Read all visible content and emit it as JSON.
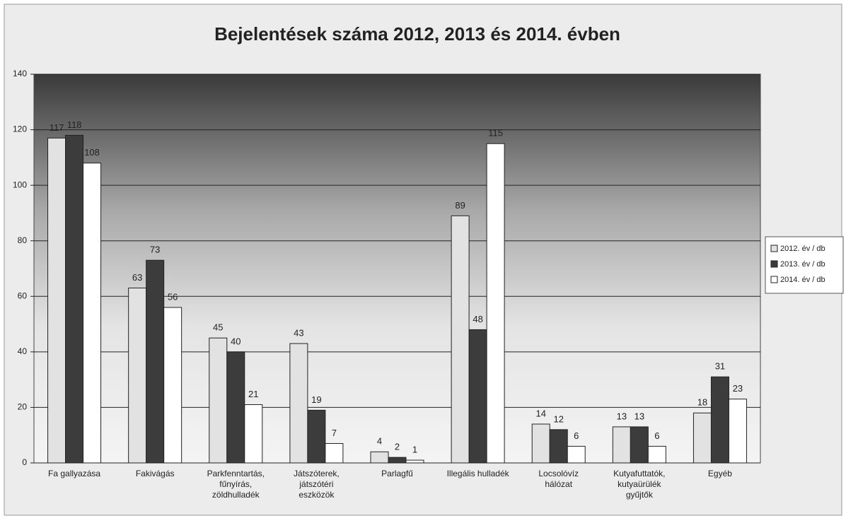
{
  "chart_data": {
    "type": "bar",
    "title": "Bejelentések száma 2012, 2013 és 2014.  évben",
    "categories": [
      [
        "Fa gallyazása"
      ],
      [
        "Fakivágás"
      ],
      [
        "Parkfenntartás,",
        "fűnyírás,",
        "zöldhulladék"
      ],
      [
        "Játszóterek,",
        "játszótéri",
        "eszközök"
      ],
      [
        "Parlagfű"
      ],
      [
        "Illegális hulladék"
      ],
      [
        "Locsolóvíz",
        "hálózat"
      ],
      [
        "Kutyafuttatók,",
        "kutyaürülék",
        "gyűjtők"
      ],
      [
        "Egyéb"
      ]
    ],
    "series": [
      {
        "name": "2012. év / db",
        "color": "#e2e2e2",
        "values": [
          117,
          63,
          45,
          43,
          4,
          89,
          14,
          13,
          18
        ]
      },
      {
        "name": "2013. év / db",
        "color": "#3c3c3c",
        "values": [
          118,
          73,
          40,
          19,
          2,
          48,
          12,
          13,
          31
        ]
      },
      {
        "name": "2014. év / db",
        "color": "#ffffff",
        "values": [
          108,
          56,
          21,
          7,
          1,
          115,
          6,
          6,
          23
        ]
      }
    ],
    "ylim": [
      0,
      140
    ],
    "yticks": [
      0,
      20,
      40,
      60,
      80,
      100,
      120,
      140
    ],
    "grid": true,
    "legend": "right"
  }
}
